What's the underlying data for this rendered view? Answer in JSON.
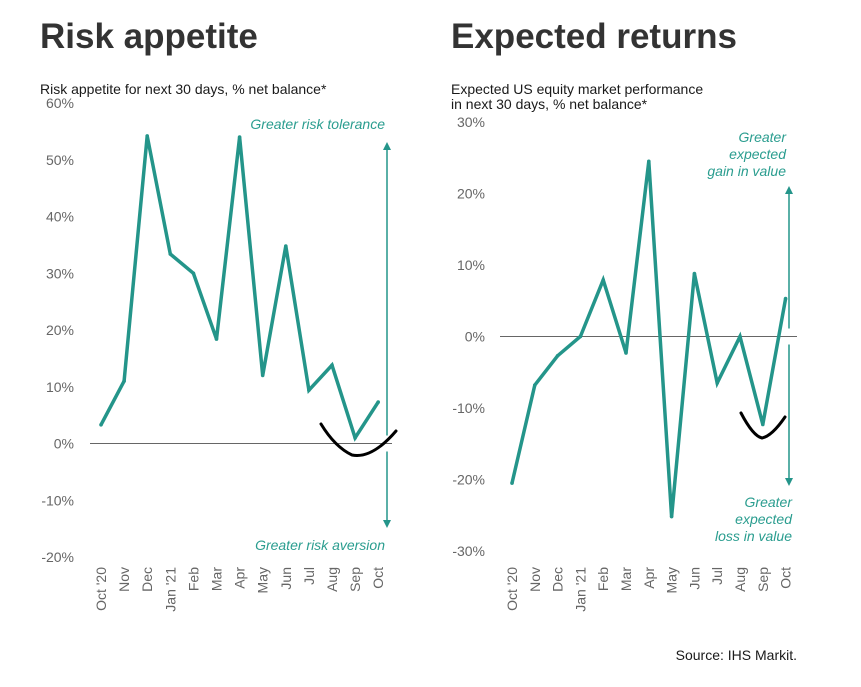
{
  "source": "Source: IHS Markit.",
  "colors": {
    "series": "#24958a",
    "axis": "#666666",
    "scribble": "#000000"
  },
  "chart_data": [
    {
      "type": "line",
      "title": "Risk appetite",
      "subtitle": [
        "Risk appetite for next 30 days, % net balance*"
      ],
      "ylim": [
        -20,
        60
      ],
      "yticks": [
        -20,
        -10,
        0,
        10,
        20,
        30,
        40,
        50,
        60
      ],
      "ytick_labels": [
        "-20%",
        "-10%",
        "0%",
        "10%",
        "20%",
        "30%",
        "40%",
        "50%",
        "60%"
      ],
      "categories": [
        "Oct '20",
        "Nov",
        "Dec",
        "Jan '21",
        "Feb",
        "Mar",
        "Apr",
        "May",
        "Jun",
        "Jul",
        "Aug",
        "Sep",
        "Oct"
      ],
      "values": [
        3.3,
        11,
        54.2,
        33.4,
        30,
        18.4,
        54,
        12,
        34.8,
        9.4,
        13.8,
        1,
        7.3
      ],
      "annotations": {
        "top": [
          "Greater risk tolerance"
        ],
        "bottom": [
          "Greater risk aversion"
        ]
      },
      "grid": false
    },
    {
      "type": "line",
      "title": "Expected returns",
      "subtitle": [
        "Expected US equity market performance",
        "in next 30 days, % net balance*"
      ],
      "ylim": [
        -30,
        30
      ],
      "yticks": [
        -30,
        -20,
        -10,
        0,
        10,
        20,
        30
      ],
      "ytick_labels": [
        "-30%",
        "-20%",
        "-10%",
        "0%",
        "10%",
        "20%",
        "30%"
      ],
      "categories": [
        "Oct '20",
        "Nov",
        "Dec",
        "Jan '21",
        "Feb",
        "Mar",
        "Apr",
        "May",
        "Jun",
        "Jul",
        "Aug",
        "Sep",
        "Oct"
      ],
      "values": [
        -20.5,
        -6.8,
        -2.7,
        0,
        7.9,
        -2.3,
        24.5,
        -25.2,
        8.8,
        -6.5,
        0,
        -12.3,
        5.3
      ],
      "annotations": {
        "top": [
          "Greater",
          "expected",
          "gain in value"
        ],
        "bottom": [
          "Greater",
          "expected",
          "loss in value"
        ]
      },
      "grid": false
    }
  ]
}
